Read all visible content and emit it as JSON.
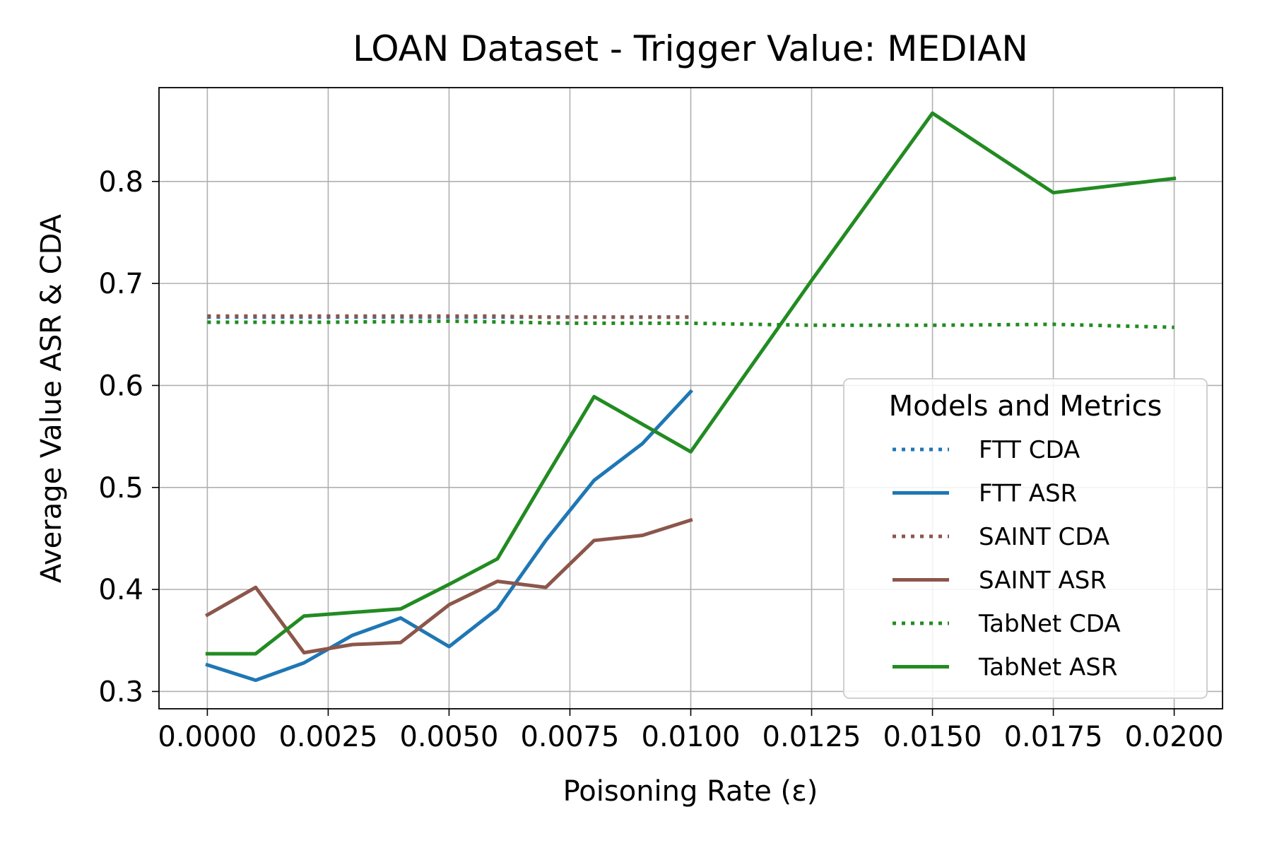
{
  "chart_data": {
    "type": "line",
    "title": "LOAN Dataset - Trigger Value: MEDIAN",
    "xlabel": "Poisoning Rate (ε)",
    "ylabel": "Average Value ASR & CDA",
    "xlim": [
      -0.001,
      0.021
    ],
    "ylim": [
      0.283,
      0.892
    ],
    "xticks": [
      0.0,
      0.0025,
      0.005,
      0.0075,
      0.01,
      0.0125,
      0.015,
      0.0175,
      0.02
    ],
    "xtick_labels": [
      "0.0000",
      "0.0025",
      "0.0050",
      "0.0075",
      "0.0100",
      "0.0125",
      "0.0150",
      "0.0175",
      "0.0200"
    ],
    "yticks": [
      0.3,
      0.4,
      0.5,
      0.6,
      0.7,
      0.8
    ],
    "ytick_labels": [
      "0.3",
      "0.4",
      "0.5",
      "0.6",
      "0.7",
      "0.8"
    ],
    "grid": true,
    "legend": {
      "title": "Models and Metrics",
      "position": "lower-right"
    },
    "series": [
      {
        "name": "FTT CDA",
        "color": "#1f77b4",
        "style": "dotted",
        "x": [
          0.0,
          0.001,
          0.002,
          0.003,
          0.004,
          0.005,
          0.006,
          0.007,
          0.008,
          0.009,
          0.01
        ],
        "y": [
          0.667,
          0.667,
          0.667,
          0.667,
          0.667,
          0.667,
          0.667,
          0.667,
          0.667,
          0.667,
          0.667
        ]
      },
      {
        "name": "FTT ASR",
        "color": "#1f77b4",
        "style": "solid",
        "x": [
          0.0,
          0.001,
          0.002,
          0.003,
          0.004,
          0.005,
          0.006,
          0.007,
          0.008,
          0.009,
          0.01
        ],
        "y": [
          0.326,
          0.311,
          0.328,
          0.355,
          0.372,
          0.344,
          0.381,
          0.448,
          0.507,
          0.543,
          0.594
        ]
      },
      {
        "name": "SAINT CDA",
        "color": "#8c564b",
        "style": "dotted",
        "x": [
          0.0,
          0.001,
          0.002,
          0.003,
          0.004,
          0.005,
          0.006,
          0.007,
          0.008,
          0.009,
          0.01
        ],
        "y": [
          0.668,
          0.668,
          0.668,
          0.668,
          0.668,
          0.668,
          0.668,
          0.667,
          0.667,
          0.667,
          0.667
        ]
      },
      {
        "name": "SAINT ASR",
        "color": "#8c564b",
        "style": "solid",
        "x": [
          0.0,
          0.001,
          0.002,
          0.003,
          0.004,
          0.005,
          0.006,
          0.007,
          0.008,
          0.009,
          0.01
        ],
        "y": [
          0.375,
          0.402,
          0.338,
          0.346,
          0.348,
          0.385,
          0.408,
          0.402,
          0.448,
          0.453,
          0.468
        ]
      },
      {
        "name": "TabNet CDA",
        "color": "#228b22",
        "style": "dotted",
        "x": [
          0.0,
          0.0025,
          0.005,
          0.0075,
          0.01,
          0.0125,
          0.015,
          0.0175,
          0.02
        ],
        "y": [
          0.662,
          0.662,
          0.663,
          0.661,
          0.661,
          0.659,
          0.659,
          0.66,
          0.657
        ]
      },
      {
        "name": "TabNet ASR",
        "color": "#228b22",
        "style": "solid",
        "x": [
          0.0,
          0.001,
          0.002,
          0.004,
          0.005,
          0.006,
          0.007,
          0.008,
          0.009,
          0.01,
          0.0125,
          0.015,
          0.0175,
          0.02
        ],
        "y": [
          0.337,
          0.337,
          0.374,
          0.381,
          0.405,
          0.43,
          0.51,
          0.589,
          0.562,
          0.535,
          0.703,
          0.867,
          0.789,
          0.803
        ]
      }
    ]
  }
}
